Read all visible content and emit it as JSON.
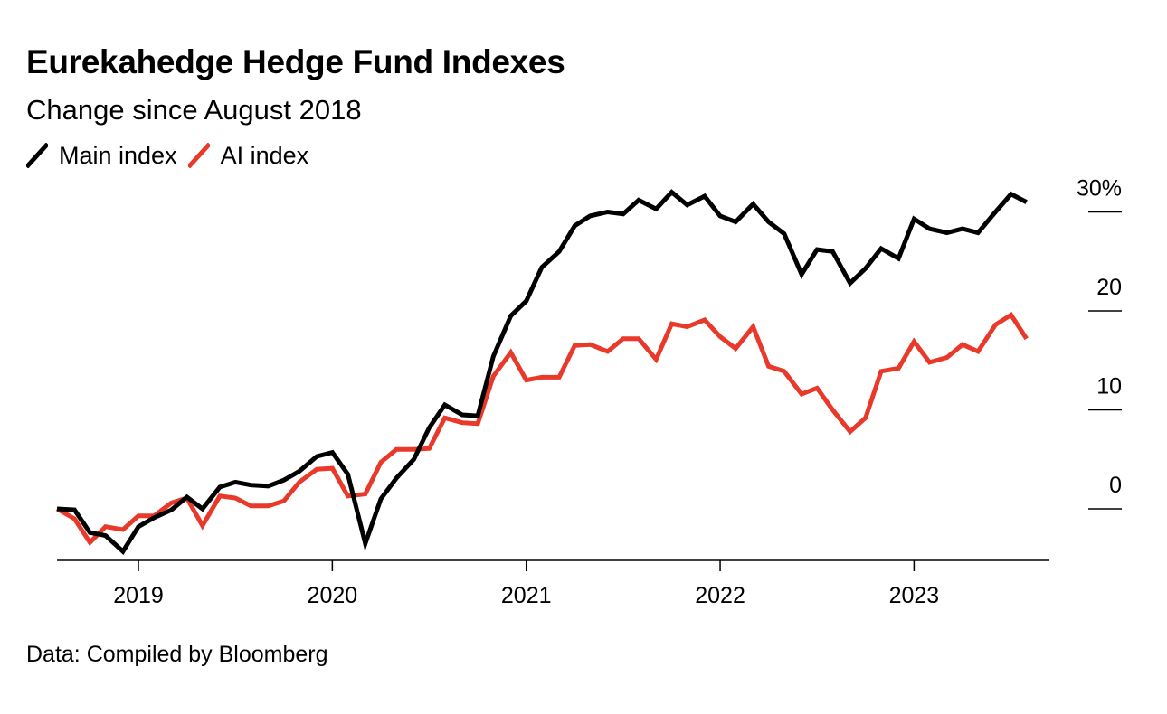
{
  "chart_data": {
    "type": "line",
    "title": "Eurekahedge Hedge Fund Indexes",
    "subtitle": "Change since August 2018",
    "source": "Data: Compiled by Bloomberg",
    "xlabel": "",
    "ylabel": "",
    "x_ticks": [
      "2019",
      "2020",
      "2021",
      "2022",
      "2023"
    ],
    "x_range": [
      2018.58,
      2023.67
    ],
    "y_ticks": [
      "30%",
      "20",
      "10",
      "0"
    ],
    "ylim": [
      -5,
      32
    ],
    "grid": false,
    "legend_position": "top-left",
    "series": [
      {
        "name": "Main index",
        "color": "#000000",
        "points": [
          [
            2018.58,
            0.0
          ],
          [
            2018.67,
            -0.1
          ],
          [
            2018.75,
            -2.4
          ],
          [
            2018.83,
            -2.7
          ],
          [
            2018.92,
            -4.3
          ],
          [
            2019.0,
            -1.8
          ],
          [
            2019.08,
            -0.9
          ],
          [
            2019.17,
            -0.1
          ],
          [
            2019.25,
            1.2
          ],
          [
            2019.33,
            0.0
          ],
          [
            2019.42,
            2.2
          ],
          [
            2019.5,
            2.7
          ],
          [
            2019.58,
            2.4
          ],
          [
            2019.67,
            2.3
          ],
          [
            2019.75,
            2.9
          ],
          [
            2019.83,
            3.8
          ],
          [
            2019.92,
            5.3
          ],
          [
            2020.0,
            5.7
          ],
          [
            2020.08,
            3.5
          ],
          [
            2020.17,
            -3.5
          ],
          [
            2020.25,
            1.0
          ],
          [
            2020.33,
            3.1
          ],
          [
            2020.42,
            5.0
          ],
          [
            2020.5,
            8.2
          ],
          [
            2020.58,
            10.5
          ],
          [
            2020.67,
            9.5
          ],
          [
            2020.75,
            9.4
          ],
          [
            2020.83,
            15.4
          ],
          [
            2020.92,
            19.5
          ],
          [
            2021.0,
            21.0
          ],
          [
            2021.08,
            24.4
          ],
          [
            2021.17,
            26.0
          ],
          [
            2021.25,
            28.6
          ],
          [
            2021.33,
            29.6
          ],
          [
            2021.42,
            30.0
          ],
          [
            2021.5,
            29.8
          ],
          [
            2021.58,
            31.2
          ],
          [
            2021.67,
            30.3
          ],
          [
            2021.75,
            32.0
          ],
          [
            2021.83,
            30.7
          ],
          [
            2021.92,
            31.6
          ],
          [
            2022.0,
            29.6
          ],
          [
            2022.08,
            29.0
          ],
          [
            2022.17,
            30.8
          ],
          [
            2022.25,
            29.0
          ],
          [
            2022.33,
            27.8
          ],
          [
            2022.42,
            23.7
          ],
          [
            2022.5,
            26.2
          ],
          [
            2022.58,
            26.0
          ],
          [
            2022.67,
            22.8
          ],
          [
            2022.75,
            24.3
          ],
          [
            2022.83,
            26.3
          ],
          [
            2022.92,
            25.3
          ],
          [
            2023.0,
            29.3
          ],
          [
            2023.08,
            28.3
          ],
          [
            2023.17,
            27.9
          ],
          [
            2023.25,
            28.3
          ],
          [
            2023.33,
            27.9
          ],
          [
            2023.42,
            30.0
          ],
          [
            2023.5,
            31.8
          ],
          [
            2023.58,
            31.0
          ]
        ]
      },
      {
        "name": "AI index",
        "color": "#e8392b",
        "points": [
          [
            2018.58,
            0.0
          ],
          [
            2018.67,
            -1.0
          ],
          [
            2018.75,
            -3.4
          ],
          [
            2018.83,
            -1.8
          ],
          [
            2018.92,
            -2.1
          ],
          [
            2019.0,
            -0.7
          ],
          [
            2019.08,
            -0.7
          ],
          [
            2019.17,
            0.6
          ],
          [
            2019.25,
            1.1
          ],
          [
            2019.33,
            -1.7
          ],
          [
            2019.42,
            1.3
          ],
          [
            2019.5,
            1.1
          ],
          [
            2019.58,
            0.3
          ],
          [
            2019.67,
            0.3
          ],
          [
            2019.75,
            0.8
          ],
          [
            2019.83,
            2.7
          ],
          [
            2019.92,
            4.0
          ],
          [
            2020.0,
            4.1
          ],
          [
            2020.08,
            1.3
          ],
          [
            2020.17,
            1.5
          ],
          [
            2020.25,
            4.7
          ],
          [
            2020.33,
            6.0
          ],
          [
            2020.42,
            6.0
          ],
          [
            2020.5,
            6.1
          ],
          [
            2020.58,
            9.2
          ],
          [
            2020.67,
            8.7
          ],
          [
            2020.75,
            8.6
          ],
          [
            2020.83,
            13.4
          ],
          [
            2020.92,
            15.8
          ],
          [
            2021.0,
            13.0
          ],
          [
            2021.08,
            13.3
          ],
          [
            2021.17,
            13.3
          ],
          [
            2021.25,
            16.5
          ],
          [
            2021.33,
            16.6
          ],
          [
            2021.42,
            15.9
          ],
          [
            2021.5,
            17.2
          ],
          [
            2021.58,
            17.2
          ],
          [
            2021.67,
            15.1
          ],
          [
            2021.75,
            18.7
          ],
          [
            2021.83,
            18.4
          ],
          [
            2021.92,
            19.1
          ],
          [
            2022.0,
            17.4
          ],
          [
            2022.08,
            16.2
          ],
          [
            2022.17,
            18.4
          ],
          [
            2022.25,
            14.4
          ],
          [
            2022.33,
            13.9
          ],
          [
            2022.42,
            11.6
          ],
          [
            2022.5,
            12.2
          ],
          [
            2022.58,
            10.0
          ],
          [
            2022.67,
            7.8
          ],
          [
            2022.75,
            9.2
          ],
          [
            2022.83,
            13.9
          ],
          [
            2022.92,
            14.2
          ],
          [
            2023.0,
            16.9
          ],
          [
            2023.08,
            14.8
          ],
          [
            2023.17,
            15.3
          ],
          [
            2023.25,
            16.6
          ],
          [
            2023.33,
            15.9
          ],
          [
            2023.42,
            18.6
          ],
          [
            2023.5,
            19.6
          ],
          [
            2023.58,
            17.2
          ]
        ]
      }
    ]
  }
}
